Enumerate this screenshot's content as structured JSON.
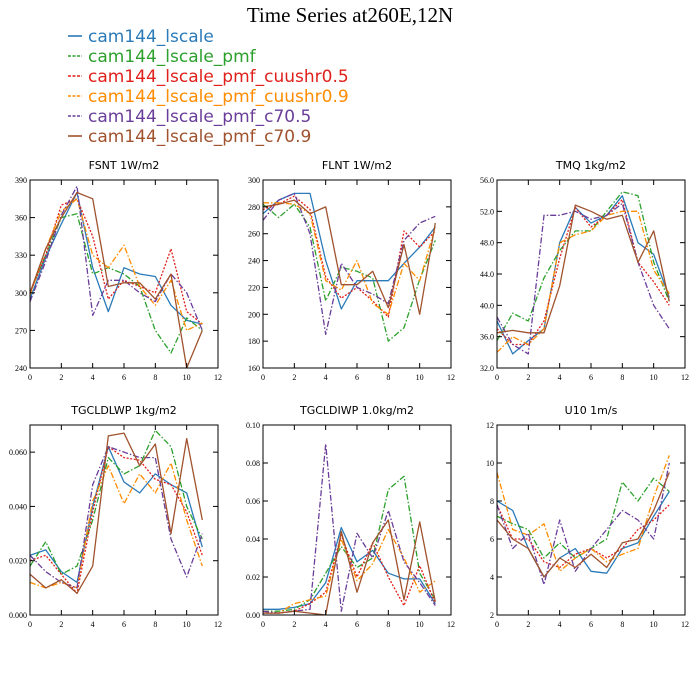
{
  "figure_title": "Time Series at260E,12N",
  "legend": [
    {
      "name": "cam144_lscale",
      "color": "#2a7ab9",
      "dash": "solid"
    },
    {
      "name": "cam144_lscale_pmf",
      "color": "#2ca02c",
      "dash": "dashdot"
    },
    {
      "name": "cam144_lscale_pmf_cuushr0.5",
      "color": "#e0201b",
      "dash": "dot"
    },
    {
      "name": "cam144_lscale_pmf_cuushr0.9",
      "color": "#ff8c00",
      "dash": "dashdot"
    },
    {
      "name": "cam144_lscale_pmf_c70.5",
      "color": "#6a3d9a",
      "dash": "dashdot"
    },
    {
      "name": "cam144_lscale_pmf_c70.9",
      "color": "#a0522d",
      "dash": "solid"
    }
  ],
  "chart_data": [
    {
      "type": "line",
      "title": "FSNT   1W/m2",
      "xlim": [
        0,
        12
      ],
      "ylim": [
        240,
        390
      ],
      "xticks": [
        0,
        2,
        4,
        6,
        8,
        10,
        12
      ],
      "xtick_labels": [
        "0",
        "2",
        "4",
        "6",
        "8",
        "10",
        "12"
      ],
      "yticks": [
        240,
        270,
        300,
        330,
        360,
        390
      ],
      "ytick_labels": [
        "240",
        "270",
        "300",
        "330",
        "360",
        "390"
      ],
      "x": [
        0,
        1,
        2,
        3,
        4,
        5,
        6,
        7,
        8,
        9,
        10,
        11
      ],
      "series": [
        {
          "name": "cam144_lscale",
          "values": [
            295,
            328,
            355,
            380,
            320,
            285,
            320,
            315,
            313,
            290,
            278,
            275
          ]
        },
        {
          "name": "cam144_lscale_pmf",
          "values": [
            300,
            330,
            360,
            363,
            315,
            320,
            315,
            305,
            270,
            252,
            280,
            270
          ]
        },
        {
          "name": "cam144_lscale_pmf_cuushr0.5",
          "values": [
            300,
            330,
            370,
            375,
            345,
            295,
            310,
            305,
            300,
            335,
            285,
            275
          ]
        },
        {
          "name": "cam144_lscale_pmf_cuushr0.9",
          "values": [
            298,
            335,
            365,
            375,
            330,
            320,
            338,
            305,
            290,
            310,
            270,
            276
          ]
        },
        {
          "name": "cam144_lscale_pmf_c70.5",
          "values": [
            293,
            325,
            362,
            385,
            282,
            310,
            310,
            300,
            293,
            315,
            300,
            270
          ]
        },
        {
          "name": "cam144_lscale_pmf_c70.9",
          "values": [
            300,
            335,
            360,
            380,
            375,
            305,
            308,
            308,
            295,
            315,
            240,
            270
          ]
        }
      ]
    },
    {
      "type": "line",
      "title": "FLNT   1W/m2",
      "xlim": [
        0,
        12
      ],
      "ylim": [
        160,
        300
      ],
      "xticks": [
        0,
        2,
        4,
        6,
        8,
        10,
        12
      ],
      "xtick_labels": [
        "0",
        "2",
        "4",
        "6",
        "8",
        "10",
        "12"
      ],
      "yticks": [
        160,
        180,
        200,
        220,
        240,
        260,
        280,
        300
      ],
      "ytick_labels": [
        "160",
        "180",
        "200",
        "220",
        "240",
        "260",
        "280",
        "300"
      ],
      "x": [
        0,
        1,
        2,
        3,
        4,
        5,
        6,
        7,
        8,
        9,
        10,
        11
      ],
      "series": [
        {
          "name": "cam144_lscale",
          "values": [
            275,
            285,
            290,
            290,
            240,
            204,
            225,
            225,
            225,
            238,
            250,
            265
          ]
        },
        {
          "name": "cam144_lscale_pmf",
          "values": [
            282,
            272,
            282,
            265,
            210,
            235,
            232,
            227,
            180,
            190,
            226,
            255
          ]
        },
        {
          "name": "cam144_lscale_pmf_cuushr0.5",
          "values": [
            278,
            282,
            288,
            278,
            228,
            212,
            220,
            210,
            198,
            262,
            250,
            262
          ]
        },
        {
          "name": "cam144_lscale_pmf_cuushr0.9",
          "values": [
            283,
            283,
            282,
            275,
            225,
            218,
            240,
            208,
            200,
            238,
            225,
            265
          ]
        },
        {
          "name": "cam144_lscale_pmf_c70.5",
          "values": [
            270,
            285,
            290,
            260,
            185,
            238,
            220,
            215,
            208,
            255,
            268,
            273
          ]
        },
        {
          "name": "cam144_lscale_pmf_c70.9",
          "values": [
            280,
            282,
            285,
            275,
            280,
            222,
            222,
            232,
            205,
            252,
            200,
            268
          ]
        }
      ]
    },
    {
      "type": "line",
      "title": "TMQ   1kg/m2",
      "xlim": [
        0,
        12
      ],
      "ylim": [
        32,
        56
      ],
      "xticks": [
        0,
        2,
        4,
        6,
        8,
        10,
        12
      ],
      "xtick_labels": [
        "0",
        "2",
        "4",
        "6",
        "8",
        "10",
        "12"
      ],
      "yticks": [
        32,
        36,
        40,
        44,
        48,
        52,
        56
      ],
      "ytick_labels": [
        "32.0",
        "36.0",
        "40.0",
        "44.0",
        "48.0",
        "52.0",
        "56.0"
      ],
      "x": [
        0,
        1,
        2,
        3,
        4,
        5,
        6,
        7,
        8,
        9,
        10,
        11
      ],
      "series": [
        {
          "name": "cam144_lscale",
          "values": [
            38.0,
            33.8,
            35.5,
            37.0,
            48.0,
            52.5,
            50.5,
            51.5,
            54.0,
            48.0,
            46.5,
            41.0
          ]
        },
        {
          "name": "cam144_lscale_pmf",
          "values": [
            35.5,
            39.0,
            38.0,
            43.5,
            47.0,
            49.5,
            49.5,
            52.0,
            54.5,
            54.0,
            45.5,
            40.5
          ]
        },
        {
          "name": "cam144_lscale_pmf_cuushr0.5",
          "values": [
            37.0,
            35.0,
            35.0,
            38.0,
            46.0,
            52.5,
            50.0,
            51.5,
            53.5,
            45.5,
            43.0,
            40.0
          ]
        },
        {
          "name": "cam144_lscale_pmf_cuushr0.9",
          "values": [
            34.0,
            36.0,
            35.0,
            37.0,
            48.0,
            49.0,
            49.5,
            51.5,
            52.0,
            52.0,
            44.5,
            41.5
          ]
        },
        {
          "name": "cam144_lscale_pmf_c70.5",
          "values": [
            38.5,
            35.0,
            33.8,
            51.5,
            51.5,
            52.0,
            51.0,
            51.5,
            53.0,
            45.5,
            40.0,
            37.0
          ]
        },
        {
          "name": "cam144_lscale_pmf_c70.9",
          "values": [
            36.5,
            36.8,
            36.5,
            36.5,
            42.5,
            52.8,
            52.0,
            51.0,
            51.5,
            45.5,
            49.5,
            40.5
          ]
        }
      ]
    },
    {
      "type": "line",
      "title": "TGCLDLWP   1kg/m2",
      "xlim": [
        0,
        12
      ],
      "ylim": [
        0,
        0.07
      ],
      "xticks": [
        0,
        2,
        4,
        6,
        8,
        10,
        12
      ],
      "xtick_labels": [
        "0",
        "2",
        "4",
        "6",
        "8",
        "10",
        "12"
      ],
      "yticks": [
        0,
        0.02,
        0.04,
        0.06
      ],
      "ytick_labels": [
        "0.000",
        "0.020",
        "0.040",
        "0.060"
      ],
      "x": [
        0,
        1,
        2,
        3,
        4,
        5,
        6,
        7,
        8,
        9,
        10,
        11
      ],
      "series": [
        {
          "name": "cam144_lscale",
          "values": [
            0.022,
            0.024,
            0.016,
            0.012,
            0.04,
            0.062,
            0.049,
            0.045,
            0.052,
            0.048,
            0.045,
            0.025
          ]
        },
        {
          "name": "cam144_lscale_pmf",
          "values": [
            0.018,
            0.027,
            0.015,
            0.018,
            0.035,
            0.058,
            0.052,
            0.055,
            0.068,
            0.062,
            0.04,
            0.028
          ]
        },
        {
          "name": "cam144_lscale_pmf_cuushr0.5",
          "values": [
            0.02,
            0.022,
            0.015,
            0.008,
            0.038,
            0.062,
            0.058,
            0.057,
            0.05,
            0.048,
            0.038,
            0.022
          ]
        },
        {
          "name": "cam144_lscale_pmf_cuushr0.9",
          "values": [
            0.012,
            0.01,
            0.012,
            0.01,
            0.042,
            0.055,
            0.041,
            0.052,
            0.045,
            0.056,
            0.035,
            0.018
          ]
        },
        {
          "name": "cam144_lscale_pmf_c70.5",
          "values": [
            0.022,
            0.016,
            0.012,
            0.01,
            0.048,
            0.062,
            0.06,
            0.058,
            0.058,
            0.028,
            0.014,
            0.03
          ]
        },
        {
          "name": "cam144_lscale_pmf_c70.9",
          "values": [
            0.015,
            0.01,
            0.013,
            0.008,
            0.018,
            0.066,
            0.067,
            0.055,
            0.063,
            0.03,
            0.065,
            0.035
          ]
        }
      ]
    },
    {
      "type": "line",
      "title": "TGCLDIWP   1.0kg/m2",
      "xlim": [
        0,
        12
      ],
      "ylim": [
        0,
        0.1
      ],
      "xticks": [
        0,
        2,
        4,
        6,
        8,
        10,
        12
      ],
      "xtick_labels": [
        "0",
        "2",
        "4",
        "6",
        "8",
        "10",
        "12"
      ],
      "yticks": [
        0,
        0.02,
        0.04,
        0.06,
        0.08,
        0.1
      ],
      "ytick_labels": [
        "0.00",
        "0.02",
        "0.04",
        "0.06",
        "0.08",
        "0.10"
      ],
      "x": [
        0,
        1,
        2,
        3,
        4,
        5,
        6,
        7,
        8,
        9,
        10,
        11
      ],
      "series": [
        {
          "name": "cam144_lscale",
          "values": [
            0.003,
            0.003,
            0.004,
            0.006,
            0.017,
            0.046,
            0.028,
            0.034,
            0.022,
            0.019,
            0.019,
            0.006
          ]
        },
        {
          "name": "cam144_lscale_pmf",
          "values": [
            0.002,
            0.002,
            0.003,
            0.008,
            0.022,
            0.036,
            0.025,
            0.03,
            0.066,
            0.073,
            0.022,
            0.008
          ]
        },
        {
          "name": "cam144_lscale_pmf_cuushr0.5",
          "values": [
            0.001,
            0.001,
            0.002,
            0.006,
            0.012,
            0.042,
            0.02,
            0.038,
            0.02,
            0.005,
            0.026,
            0.006
          ]
        },
        {
          "name": "cam144_lscale_pmf_cuushr0.9",
          "values": [
            0.002,
            0.001,
            0.006,
            0.008,
            0.01,
            0.04,
            0.018,
            0.027,
            0.045,
            0.03,
            0.012,
            0.018
          ]
        },
        {
          "name": "cam144_lscale_pmf_c70.5",
          "values": [
            0.002,
            0.001,
            0.002,
            0.003,
            0.09,
            0.002,
            0.043,
            0.03,
            0.055,
            0.028,
            0.017,
            0.005
          ]
        },
        {
          "name": "cam144_lscale_pmf_c70.9",
          "values": [
            0.001,
            0.001,
            0.002,
            0.001,
            0.0,
            0.044,
            0.012,
            0.038,
            0.05,
            0.008,
            0.049,
            0.007
          ]
        }
      ]
    },
    {
      "type": "line",
      "title": "U10   1m/s",
      "xlim": [
        0,
        12
      ],
      "ylim": [
        2,
        12
      ],
      "xticks": [
        0,
        2,
        4,
        6,
        8,
        10,
        12
      ],
      "xtick_labels": [
        "0",
        "2",
        "4",
        "6",
        "8",
        "10",
        "12"
      ],
      "yticks": [
        2,
        4,
        6,
        8,
        10,
        12
      ],
      "ytick_labels": [
        "2",
        "4",
        "6",
        "8",
        "10",
        "12"
      ],
      "x": [
        0,
        1,
        2,
        3,
        4,
        5,
        6,
        7,
        8,
        9,
        10,
        11
      ],
      "series": [
        {
          "name": "cam144_lscale",
          "values": [
            8.0,
            7.5,
            5.5,
            4.0,
            5.0,
            5.5,
            4.3,
            4.2,
            5.5,
            5.8,
            7.2,
            8.5
          ]
        },
        {
          "name": "cam144_lscale_pmf",
          "values": [
            7.2,
            6.8,
            6.5,
            5.0,
            5.8,
            5.0,
            5.5,
            6.0,
            9.0,
            8.0,
            9.2,
            8.5
          ]
        },
        {
          "name": "cam144_lscale_pmf_cuushr0.5",
          "values": [
            7.8,
            6.0,
            6.0,
            4.8,
            4.5,
            5.2,
            5.5,
            5.0,
            5.5,
            6.5,
            7.0,
            7.8
          ]
        },
        {
          "name": "cam144_lscale_pmf_cuushr0.9",
          "values": [
            9.5,
            6.5,
            6.2,
            6.8,
            4.3,
            5.0,
            5.5,
            4.8,
            5.2,
            5.5,
            8.2,
            10.4
          ]
        },
        {
          "name": "cam144_lscale_pmf_c70.5",
          "values": [
            7.8,
            5.5,
            6.3,
            3.6,
            7.0,
            4.3,
            5.5,
            6.5,
            7.5,
            7.0,
            6.0,
            10.0
          ]
        },
        {
          "name": "cam144_lscale_pmf_c70.9",
          "values": [
            7.0,
            6.0,
            5.5,
            4.0,
            5.0,
            4.5,
            5.2,
            4.5,
            5.8,
            6.0,
            7.5,
            9.5
          ]
        }
      ]
    }
  ]
}
